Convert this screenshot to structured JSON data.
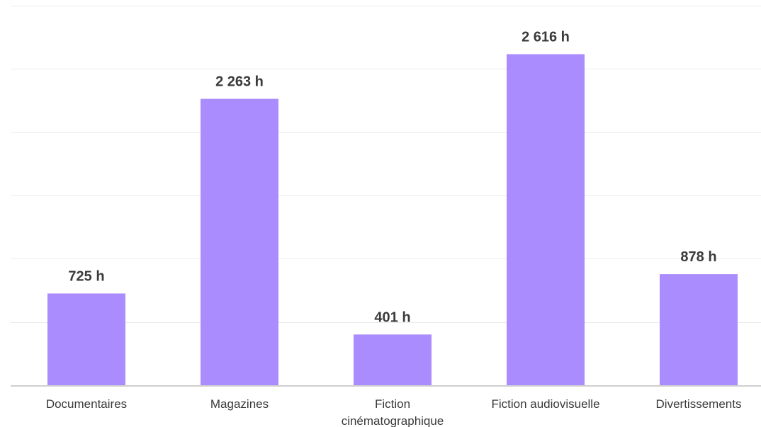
{
  "chart_data": {
    "type": "bar",
    "title": "",
    "xlabel": "",
    "ylabel": "",
    "unit": "h",
    "categories": [
      "Documentaires",
      "Magazines",
      "Fiction cinématographique",
      "Fiction audiovisuelle",
      "Divertissements"
    ],
    "category_lines": [
      [
        "Documentaires"
      ],
      [
        "Magazines"
      ],
      [
        "Fiction",
        "cinématographique"
      ],
      [
        "Fiction audiovisuelle"
      ],
      [
        "Divertissements"
      ]
    ],
    "values": [
      725,
      2263,
      401,
      2616,
      878
    ],
    "data_labels": [
      "725 h",
      "2 263 h",
      "401 h",
      "2 616 h",
      "878 h"
    ],
    "ylim": [
      0,
      3000
    ],
    "grid": true,
    "gridline_values": [
      500,
      1000,
      1500,
      2000,
      2500,
      3000
    ],
    "bar_color": "#ab8cff",
    "text_color": "#3a3a3a",
    "legend": "none"
  }
}
